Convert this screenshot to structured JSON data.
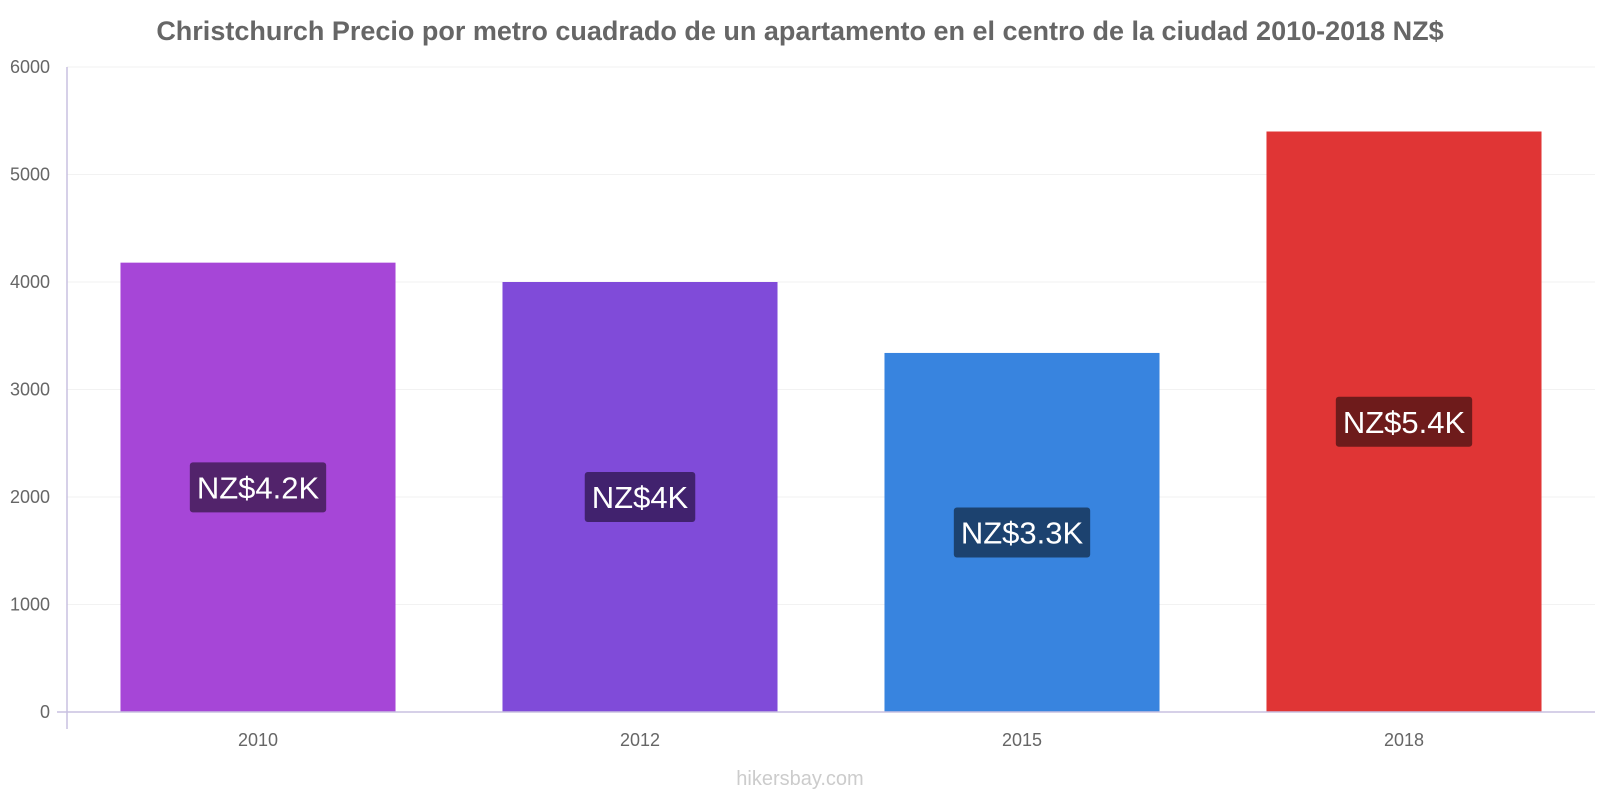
{
  "chart_data": {
    "type": "bar",
    "title": "Christchurch Precio por metro cuadrado de un apartamento en el centro de la ciudad 2010-2018 NZ$",
    "categories": [
      "2010",
      "2012",
      "2015",
      "2018"
    ],
    "values": [
      4180,
      4000,
      3340,
      5400
    ],
    "data_labels": [
      "NZ$4.2K",
      "NZ$4K",
      "NZ$3.3K",
      "NZ$5.4K"
    ],
    "bar_colors": [
      "#a646d7",
      "#804bd9",
      "#3884df",
      "#e03535"
    ],
    "label_bg_colors": [
      "#52236b",
      "#41226e",
      "#1c426f",
      "#6e1b1b"
    ],
    "xlabel": "",
    "ylabel": "",
    "ylim": [
      0,
      6000
    ],
    "yticks": [
      0,
      1000,
      2000,
      3000,
      4000,
      5000,
      6000
    ],
    "grid": true,
    "legend": "none"
  },
  "footer": {
    "watermark": "hikersbay.com"
  },
  "colors": {
    "title": "#666666",
    "axis": "#c8c0e0",
    "tick_text": "#666666",
    "grid": "#f2f2f2",
    "watermark": "#cccccc"
  }
}
